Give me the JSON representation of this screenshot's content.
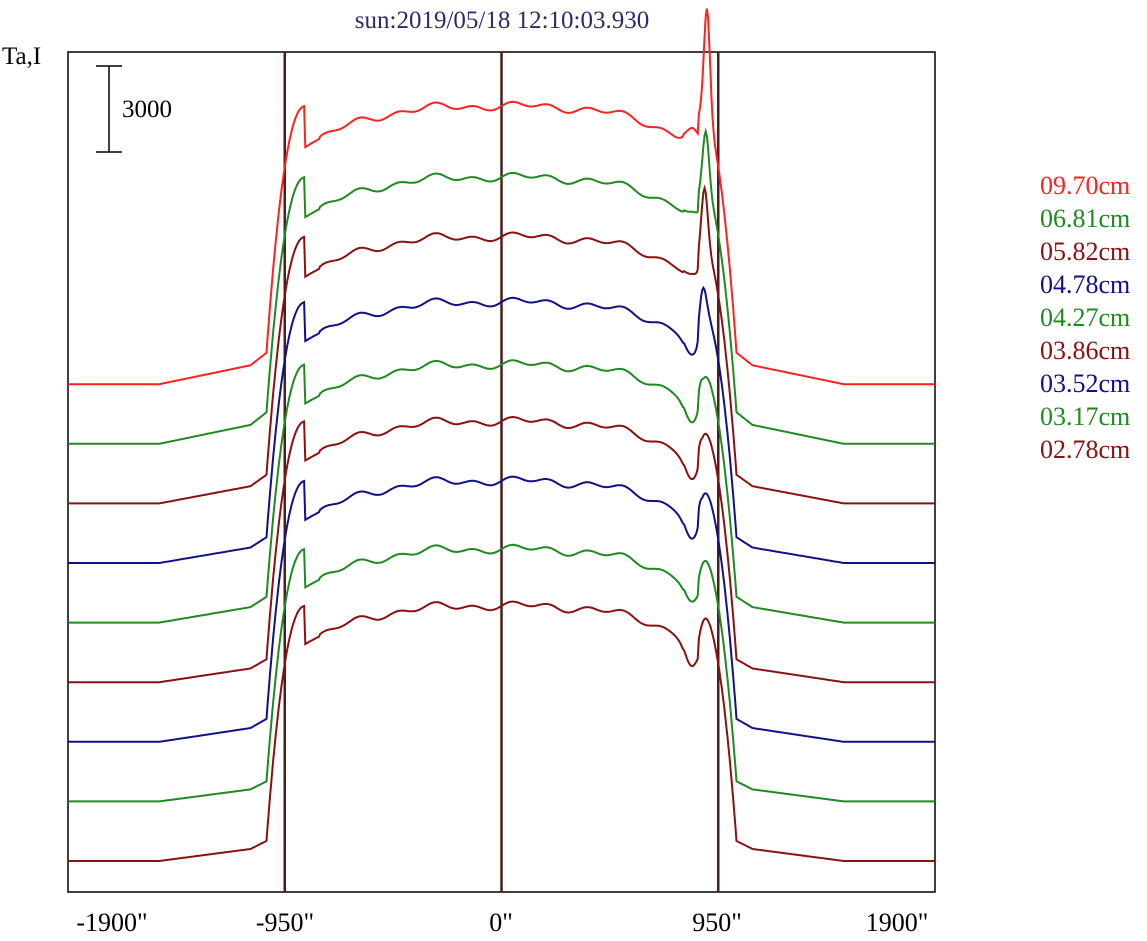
{
  "chart_data": {
    "type": "line",
    "title": "sun:2019/05/18 12:10:03.930",
    "ylabel": "Ta,I",
    "scale_bar_label": "3000",
    "x_unit": "arcsec",
    "xlim": [
      -1900,
      1900
    ],
    "x_ticks": [
      -1900,
      -950,
      0,
      950,
      1900
    ],
    "x_tick_labels": [
      "-1900\"",
      "-950\"",
      "0\"",
      "950\"",
      "1900\""
    ],
    "vertical_markers": [
      -950,
      0,
      950
    ],
    "series": [
      {
        "name": "09.70cm",
        "color": "#ff2020",
        "offset": 9,
        "quiet": 2200,
        "disk": 11900,
        "limb": 1100,
        "peak": 15300,
        "peak_x": 900,
        "dip": 11200
      },
      {
        "name": "06.81cm",
        "color": "#1f8a1f",
        "offset": 8,
        "quiet": 2300,
        "disk": 11600,
        "limb": 1100,
        "peak": 13200,
        "peak_x": 895,
        "dip": 10400
      },
      {
        "name": "05.82cm",
        "color": "#8b1010",
        "offset": 7,
        "quiet": 2300,
        "disk": 11600,
        "limb": 1000,
        "peak": 13300,
        "peak_x": 890,
        "dip": 10300
      },
      {
        "name": "04.78cm",
        "color": "#10108b",
        "offset": 6,
        "quiet": 2200,
        "disk": 11300,
        "limb": 900,
        "peak": 11800,
        "peak_x": 885,
        "dip": 9400
      },
      {
        "name": "04.27cm",
        "color": "#1f8a1f",
        "offset": 5,
        "quiet": 2300,
        "disk": 11300,
        "limb": 900,
        "peak": 10800,
        "peak_x": 885,
        "dip": 9200
      },
      {
        "name": "03.86cm",
        "color": "#8b1010",
        "offset": 4,
        "quiet": 2300,
        "disk": 11400,
        "limb": 800,
        "peak": 10800,
        "peak_x": 885,
        "dip": 9300
      },
      {
        "name": "03.52cm",
        "color": "#10108b",
        "offset": 3,
        "quiet": 2200,
        "disk": 11300,
        "limb": 800,
        "peak": 10700,
        "peak_x": 885,
        "dip": 9200
      },
      {
        "name": "03.17cm",
        "color": "#1f8a1f",
        "offset": 2,
        "quiet": 2300,
        "disk": 11100,
        "limb": 700,
        "peak": 9800,
        "peak_x": 885,
        "dip": 9200
      },
      {
        "name": "02.78cm",
        "color": "#8b1010",
        "offset": 1,
        "quiet": 2200,
        "disk": 11100,
        "limb": 700,
        "peak": 9300,
        "peak_x": 885,
        "dip": 8900
      }
    ]
  }
}
